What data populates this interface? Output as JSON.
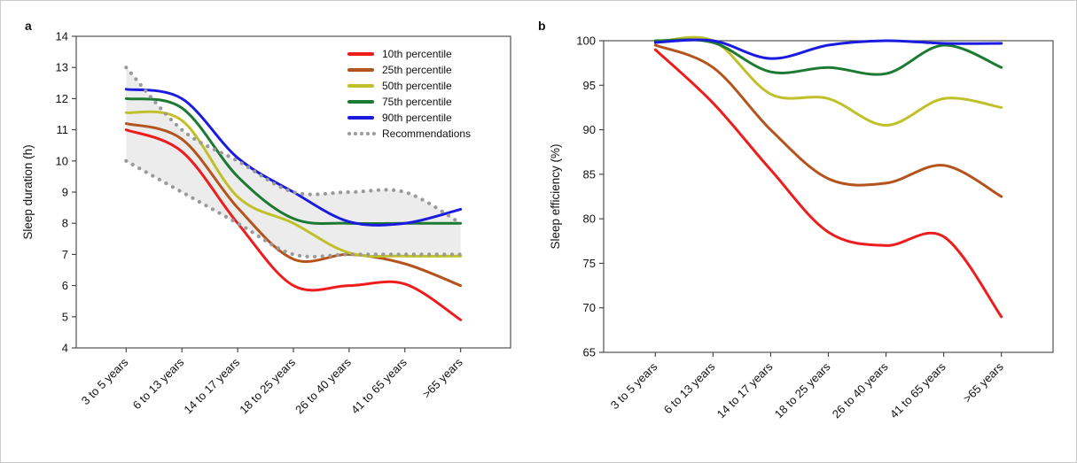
{
  "panels": {
    "a": {
      "label": "a"
    },
    "b": {
      "label": "b"
    }
  },
  "legend": {
    "items": [
      {
        "label": "10th percentile",
        "color": "#ee1d1d",
        "style": "solid"
      },
      {
        "label": "25th percentile",
        "color": "#b5531c",
        "style": "solid"
      },
      {
        "label": "50th percentile",
        "color": "#c0c02a",
        "style": "solid"
      },
      {
        "label": "75th percentile",
        "color": "#1c7a33",
        "style": "solid"
      },
      {
        "label": "90th percentile",
        "color": "#1b1be0",
        "style": "solid"
      },
      {
        "label": "Recommendations",
        "color": "#9a9a9a",
        "style": "dotted"
      }
    ]
  },
  "chart_data": [
    {
      "id": "a",
      "type": "line",
      "title": "",
      "xlabel": "",
      "ylabel": "Sleep duration (h)",
      "ylim": [
        4,
        14
      ],
      "ytick_step": 1,
      "grid": false,
      "legend_position": "top-right-inside",
      "categories": [
        "3 to 5 years",
        "6 to 13 years",
        "14 to 17 years",
        "18 to 25 years",
        "26 to 40 years",
        "41 to 65 years",
        ">65 years"
      ],
      "series": [
        {
          "name": "10th percentile",
          "color": "#ee1d1d",
          "values": [
            11.0,
            10.3,
            8.0,
            6.0,
            6.0,
            6.05,
            4.9
          ]
        },
        {
          "name": "25th percentile",
          "color": "#b5531c",
          "values": [
            11.2,
            10.7,
            8.5,
            6.85,
            7.0,
            6.7,
            6.0
          ]
        },
        {
          "name": "50th percentile",
          "color": "#c0c02a",
          "values": [
            11.55,
            11.3,
            8.85,
            8.0,
            7.05,
            6.95,
            6.95
          ]
        },
        {
          "name": "75th percentile",
          "color": "#1c7a33",
          "values": [
            12.0,
            11.7,
            9.5,
            8.15,
            8.0,
            8.0,
            8.0
          ]
        },
        {
          "name": "90th percentile",
          "color": "#1b1be0",
          "values": [
            12.3,
            12.0,
            10.1,
            9.0,
            8.05,
            8.0,
            8.45
          ]
        }
      ],
      "band": {
        "name": "Recommendations",
        "upper": [
          13,
          11,
          10,
          9,
          9,
          9,
          8
        ],
        "lower": [
          10,
          9,
          8,
          7,
          7,
          7,
          7
        ],
        "line_color": "#9a9a9a",
        "fill_color": "#ececec"
      }
    },
    {
      "id": "b",
      "type": "line",
      "title": "",
      "xlabel": "",
      "ylabel": "Sleep efficiency (%)",
      "ylim": [
        65,
        100
      ],
      "ytick_step": 5,
      "grid": false,
      "legend_position": "none",
      "categories": [
        "3 to 5 years",
        "6 to 13 years",
        "14 to 17 years",
        "18 to 25 years",
        "26 to 40 years",
        "41 to 65 years",
        ">65 years"
      ],
      "series": [
        {
          "name": "10th percentile",
          "color": "#ee1d1d",
          "values": [
            99,
            93,
            85.5,
            78.5,
            77,
            78,
            69
          ]
        },
        {
          "name": "25th percentile",
          "color": "#b5531c",
          "values": [
            99.5,
            97,
            90,
            84.5,
            84,
            86,
            82.5
          ]
        },
        {
          "name": "50th percentile",
          "color": "#c0c02a",
          "values": [
            99.8,
            100,
            94,
            93.5,
            90.5,
            93.5,
            92.5
          ]
        },
        {
          "name": "75th percentile",
          "color": "#1c7a33",
          "values": [
            100,
            99.8,
            96.5,
            97,
            96.3,
            99.5,
            97
          ]
        },
        {
          "name": "90th percentile",
          "color": "#1b1be0",
          "values": [
            99.8,
            100,
            98,
            99.5,
            100,
            99.7,
            99.7
          ]
        }
      ]
    }
  ]
}
